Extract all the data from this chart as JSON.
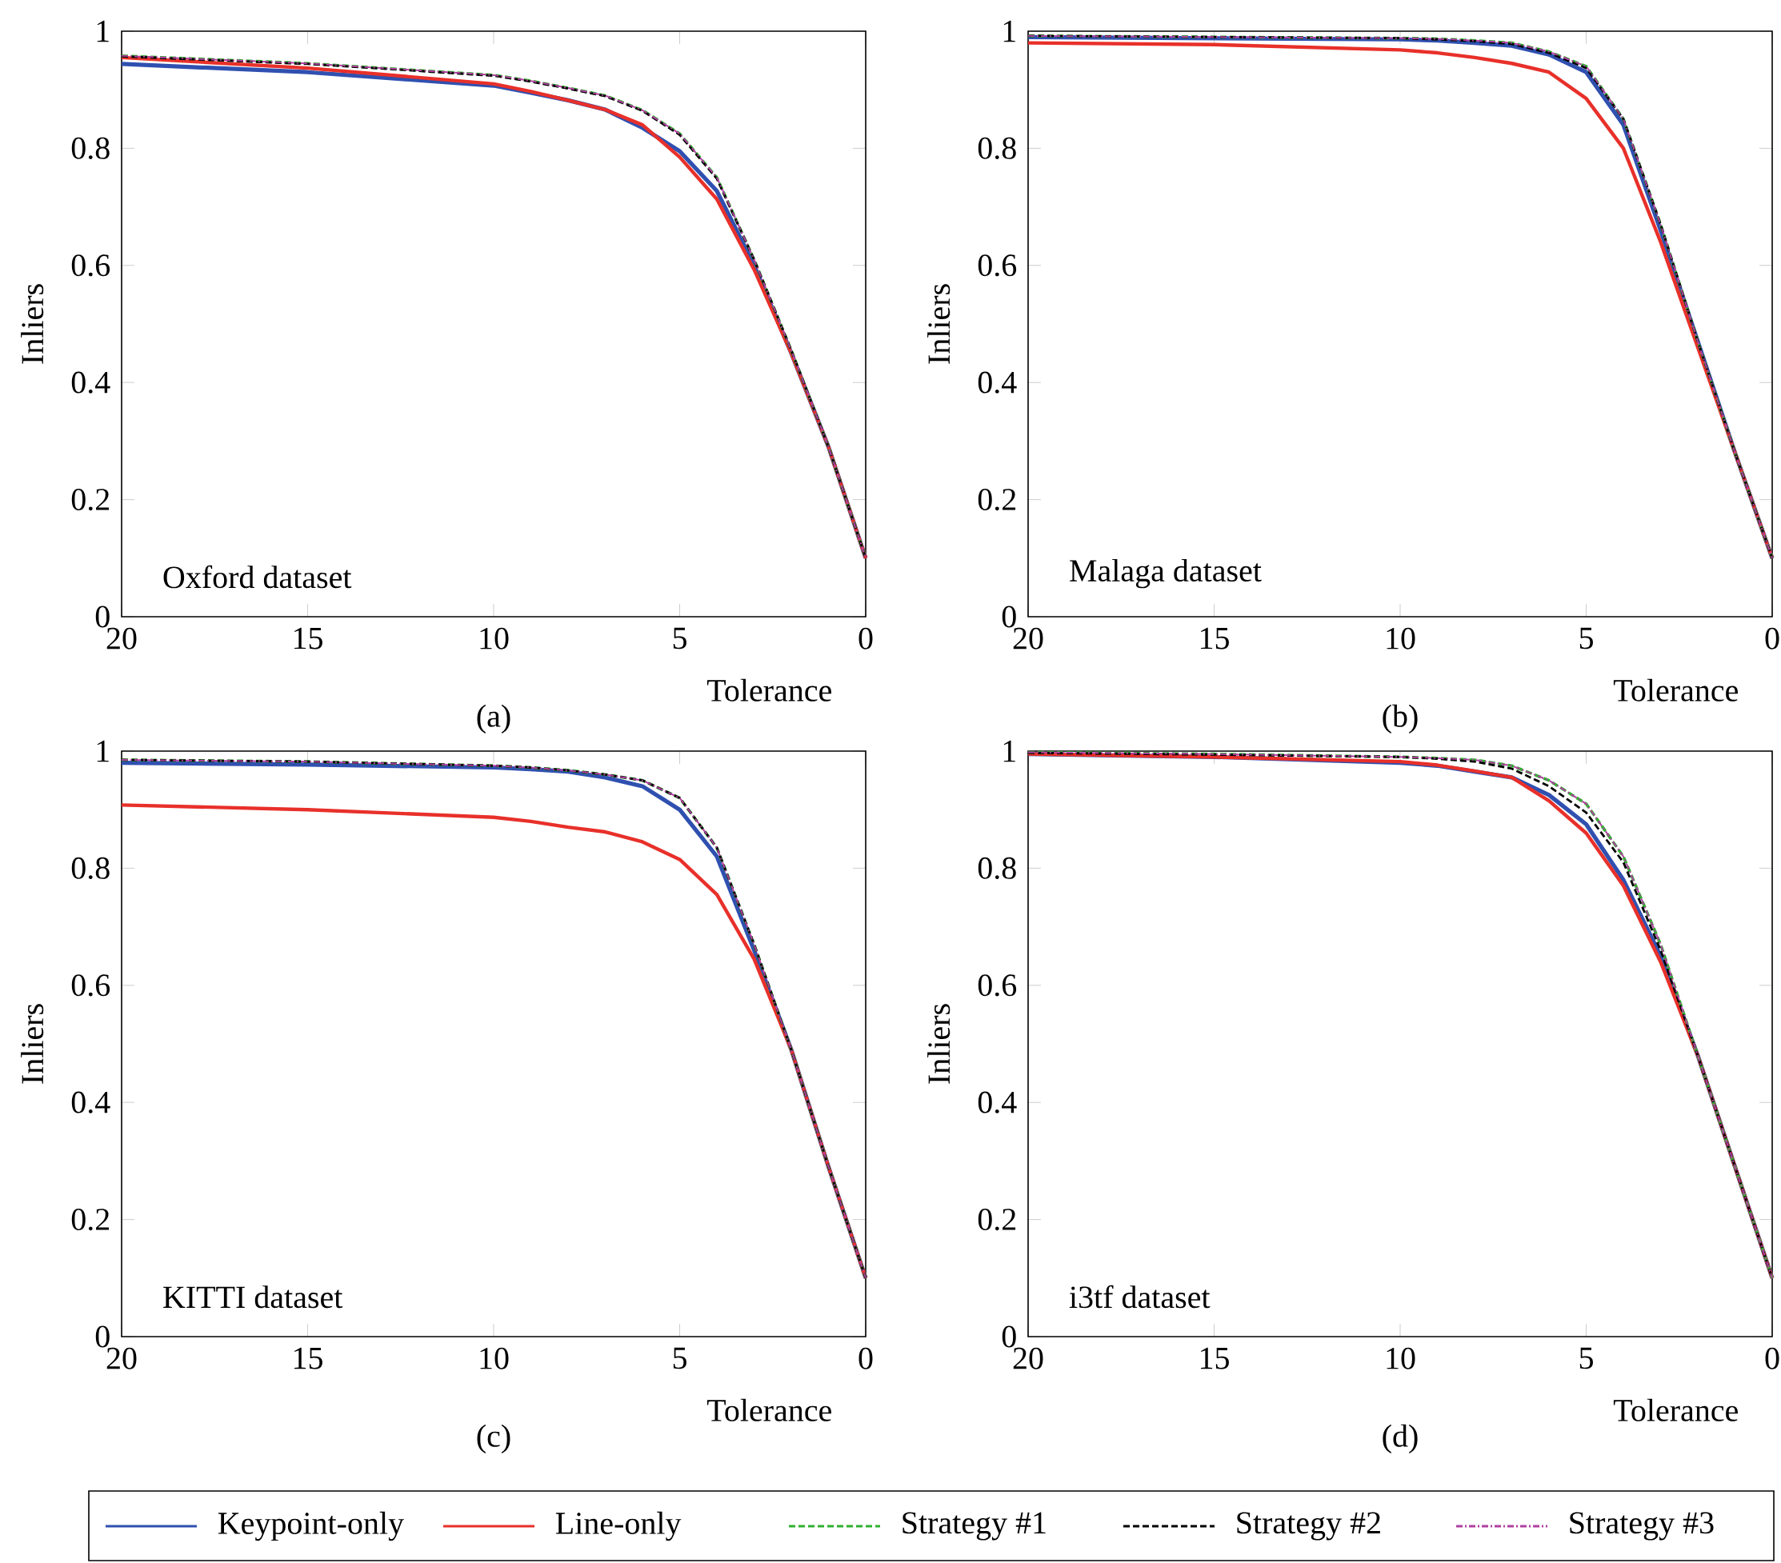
{
  "chart_data": [
    {
      "type": "line",
      "xlabel": "Tolerance",
      "ylabel": "Inliers",
      "annotations": [
        "Oxford dataset",
        "(a)"
      ],
      "x": [
        20,
        15,
        10,
        9,
        8,
        7,
        6,
        5,
        4,
        3,
        2,
        1,
        0
      ],
      "xlim": [
        20,
        0
      ],
      "ylim": [
        0,
        1
      ],
      "xticks": [
        20,
        15,
        10,
        5,
        0
      ],
      "yticks": [
        0,
        0.2,
        0.4,
        0.6,
        0.8,
        1
      ],
      "grid": false,
      "legend": "bottom",
      "series": [
        {
          "name": "Keypoint-only",
          "color": "#3050b0",
          "line_style": "solid",
          "values": [
            0.944,
            0.93,
            0.907,
            0.895,
            0.882,
            0.866,
            0.835,
            0.795,
            0.727,
            0.6,
            0.45,
            0.29,
            0.1
          ]
        },
        {
          "name": "Line-only",
          "color": "#e8302a",
          "line_style": "solid",
          "values": [
            0.955,
            0.937,
            0.91,
            0.897,
            0.882,
            0.866,
            0.84,
            0.785,
            0.713,
            0.593,
            0.45,
            0.29,
            0.1
          ]
        },
        {
          "name": "Strategy #1",
          "color": "#30b030",
          "line_style": "dashed",
          "values": [
            0.958,
            0.945,
            0.925,
            0.915,
            0.903,
            0.89,
            0.865,
            0.825,
            0.75,
            0.61,
            0.455,
            0.29,
            0.1
          ]
        },
        {
          "name": "Strategy #2",
          "color": "#000000",
          "line_style": "dashed",
          "values": [
            0.957,
            0.944,
            0.924,
            0.914,
            0.902,
            0.889,
            0.864,
            0.823,
            0.748,
            0.61,
            0.455,
            0.29,
            0.1
          ]
        },
        {
          "name": "Strategy #3",
          "color": "#b040a0",
          "line_style": "dashdot",
          "values": [
            0.958,
            0.945,
            0.925,
            0.915,
            0.903,
            0.89,
            0.865,
            0.825,
            0.75,
            0.61,
            0.455,
            0.29,
            0.1
          ]
        }
      ]
    },
    {
      "type": "line",
      "xlabel": "Tolerance",
      "ylabel": "Inliers",
      "annotations": [
        "Malaga dataset",
        "(b)"
      ],
      "x": [
        20,
        15,
        10,
        9,
        8,
        7,
        6,
        5,
        4,
        3,
        2,
        1,
        0
      ],
      "xlim": [
        20,
        0
      ],
      "ylim": [
        0,
        1
      ],
      "xticks": [
        20,
        15,
        10,
        5,
        0
      ],
      "yticks": [
        0,
        0.2,
        0.4,
        0.6,
        0.8,
        1
      ],
      "grid": false,
      "series": [
        {
          "color": "#3050b0",
          "line_style": "solid",
          "values": [
            0.99,
            0.988,
            0.986,
            0.984,
            0.98,
            0.975,
            0.96,
            0.93,
            0.84,
            0.66,
            0.47,
            0.28,
            0.1
          ]
        },
        {
          "color": "#e8302a",
          "line_style": "solid",
          "values": [
            0.98,
            0.977,
            0.968,
            0.963,
            0.955,
            0.945,
            0.93,
            0.885,
            0.8,
            0.64,
            0.46,
            0.28,
            0.1
          ]
        },
        {
          "color": "#30b030",
          "line_style": "dashed",
          "values": [
            0.992,
            0.99,
            0.988,
            0.987,
            0.984,
            0.98,
            0.965,
            0.94,
            0.85,
            0.67,
            0.47,
            0.28,
            0.1
          ]
        },
        {
          "color": "#000000",
          "line_style": "dashed",
          "values": [
            0.992,
            0.99,
            0.988,
            0.986,
            0.983,
            0.978,
            0.963,
            0.937,
            0.85,
            0.67,
            0.47,
            0.28,
            0.1
          ]
        },
        {
          "color": "#b040a0",
          "line_style": "dashdot",
          "values": [
            0.992,
            0.99,
            0.988,
            0.987,
            0.984,
            0.98,
            0.965,
            0.94,
            0.85,
            0.67,
            0.47,
            0.28,
            0.1
          ]
        }
      ]
    },
    {
      "type": "line",
      "xlabel": "Tolerance",
      "ylabel": "Inliers",
      "annotations": [
        "KITTI dataset",
        "(c)"
      ],
      "x": [
        20,
        15,
        10,
        9,
        8,
        7,
        6,
        5,
        4,
        3,
        2,
        1,
        0
      ],
      "xlim": [
        20,
        0
      ],
      "ylim": [
        0,
        1
      ],
      "xticks": [
        20,
        15,
        10,
        5,
        0
      ],
      "yticks": [
        0,
        0.2,
        0.4,
        0.6,
        0.8,
        1
      ],
      "grid": false,
      "series": [
        {
          "color": "#3050b0",
          "line_style": "solid",
          "values": [
            0.98,
            0.977,
            0.972,
            0.969,
            0.965,
            0.955,
            0.94,
            0.9,
            0.82,
            0.66,
            0.49,
            0.29,
            0.1
          ]
        },
        {
          "color": "#e8302a",
          "line_style": "solid",
          "values": [
            0.908,
            0.9,
            0.887,
            0.88,
            0.87,
            0.862,
            0.845,
            0.815,
            0.755,
            0.645,
            0.49,
            0.29,
            0.1
          ]
        },
        {
          "color": "#30b030",
          "line_style": "dashed",
          "values": [
            0.985,
            0.982,
            0.975,
            0.972,
            0.967,
            0.96,
            0.95,
            0.92,
            0.835,
            0.67,
            0.49,
            0.29,
            0.1
          ]
        },
        {
          "color": "#000000",
          "line_style": "dashed",
          "values": [
            0.985,
            0.982,
            0.975,
            0.972,
            0.967,
            0.96,
            0.95,
            0.92,
            0.835,
            0.67,
            0.49,
            0.29,
            0.1
          ]
        },
        {
          "color": "#b040a0",
          "line_style": "dashdot",
          "values": [
            0.985,
            0.982,
            0.975,
            0.972,
            0.967,
            0.96,
            0.95,
            0.92,
            0.835,
            0.67,
            0.49,
            0.29,
            0.1
          ]
        }
      ]
    },
    {
      "type": "line",
      "xlabel": "Tolerance",
      "ylabel": "Inliers",
      "annotations": [
        "i3tf dataset",
        "(d)"
      ],
      "x": [
        20,
        15,
        10,
        9,
        8,
        7,
        6,
        5,
        4,
        3,
        2,
        1,
        0
      ],
      "xlim": [
        20,
        0
      ],
      "ylim": [
        0,
        1
      ],
      "xticks": [
        20,
        15,
        10,
        5,
        0
      ],
      "yticks": [
        0,
        0.2,
        0.4,
        0.6,
        0.8,
        1
      ],
      "grid": false,
      "series": [
        {
          "color": "#3050b0",
          "line_style": "solid",
          "values": [
            0.995,
            0.99,
            0.98,
            0.975,
            0.965,
            0.955,
            0.925,
            0.875,
            0.78,
            0.65,
            0.48,
            0.29,
            0.1
          ]
        },
        {
          "color": "#e8302a",
          "line_style": "solid",
          "values": [
            0.995,
            0.99,
            0.982,
            0.976,
            0.966,
            0.955,
            0.915,
            0.86,
            0.77,
            0.64,
            0.48,
            0.29,
            0.1
          ]
        },
        {
          "color": "#30b030",
          "line_style": "dashed",
          "values": [
            0.998,
            0.995,
            0.99,
            0.988,
            0.985,
            0.975,
            0.95,
            0.91,
            0.82,
            0.67,
            0.48,
            0.29,
            0.1
          ]
        },
        {
          "color": "#000000",
          "line_style": "dashed",
          "values": [
            0.997,
            0.994,
            0.99,
            0.987,
            0.982,
            0.97,
            0.94,
            0.895,
            0.81,
            0.66,
            0.48,
            0.29,
            0.1
          ]
        },
        {
          "color": "#b040a0",
          "line_style": "dashdot",
          "values": [
            0.998,
            0.995,
            0.99,
            0.988,
            0.985,
            0.975,
            0.95,
            0.91,
            0.82,
            0.67,
            0.48,
            0.29,
            0.1
          ]
        }
      ]
    }
  ]
}
